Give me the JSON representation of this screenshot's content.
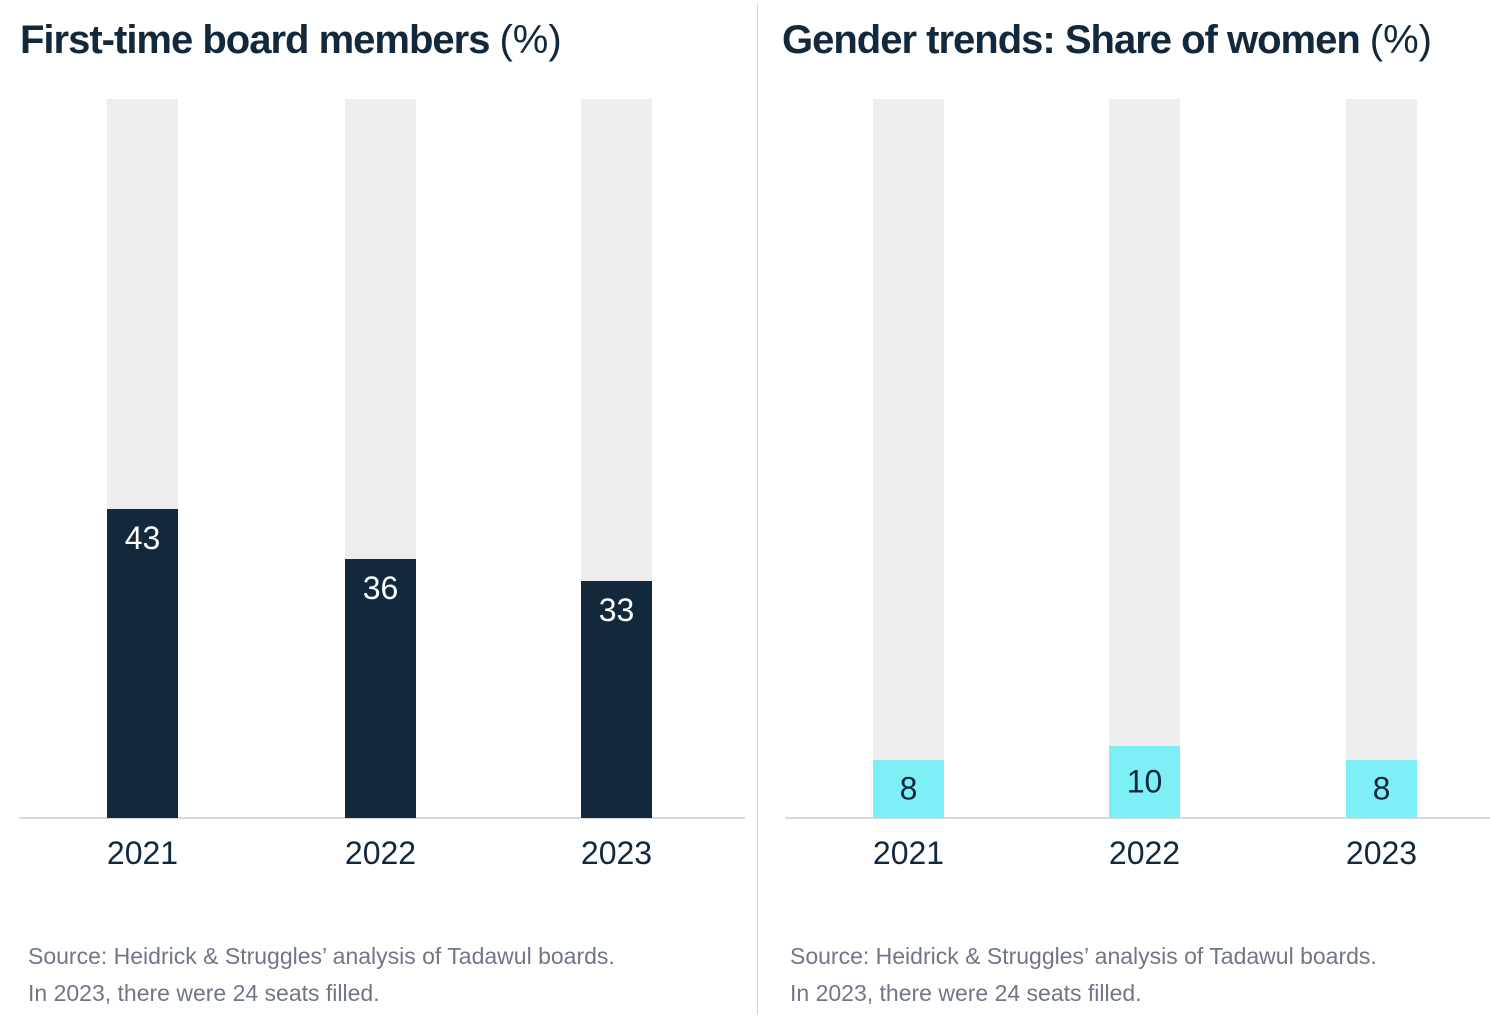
{
  "colors": {
    "navy": "#12283C",
    "cyan": "#7EEFF6",
    "bar_track": "#EDEDED",
    "axis_line": "#D9D9D9",
    "divider": "#D2D2D2",
    "title_text": "#12283C",
    "tick_text": "#12283C",
    "source_text": "#6F7787",
    "value_label_on_navy": "#FFFFFF",
    "value_label_on_cyan": "#12283C"
  },
  "chart_data": [
    {
      "type": "bar",
      "title": "First-time board members (%)",
      "title_main": "First-time board members",
      "title_unit": "(%)",
      "categories": [
        "2021",
        "2022",
        "2023"
      ],
      "values": [
        43,
        36,
        33
      ],
      "ylim": [
        0,
        100
      ],
      "unit": "%",
      "grid": false,
      "legend": "none",
      "bar_color_name": "navy",
      "background_track": "full-height 100% gray track behind each bar",
      "value_labels_shown": true,
      "source_lines": [
        "Source: Heidrick & Struggles’ analysis of Tadawul boards.",
        "In 2023, there were 24 seats filled."
      ]
    },
    {
      "type": "bar",
      "title": "Gender trends: Share of women (%)",
      "title_main": "Gender trends: Share of women",
      "title_unit": "(%)",
      "categories": [
        "2021",
        "2022",
        "2023"
      ],
      "values": [
        8,
        10,
        8
      ],
      "ylim": [
        0,
        100
      ],
      "unit": "%",
      "grid": false,
      "legend": "none",
      "bar_color_name": "cyan",
      "background_track": "full-height 100% gray track behind each bar",
      "value_labels_shown": true,
      "source_lines": [
        "Source: Heidrick & Struggles’ analysis of Tadawul boards.",
        "In 2023, there were 24 seats filled."
      ]
    }
  ]
}
